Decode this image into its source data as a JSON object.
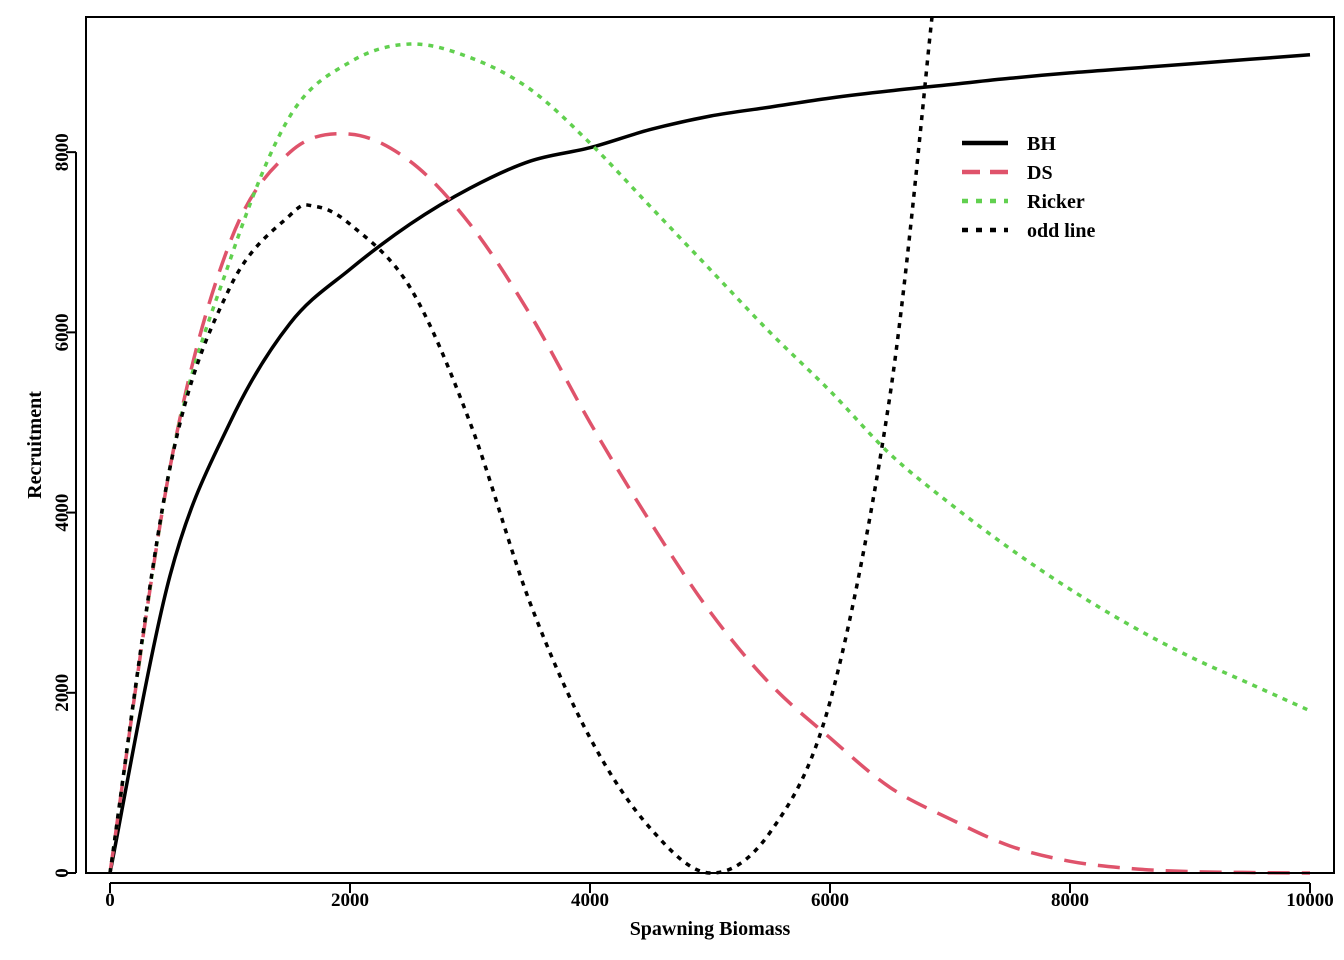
{
  "chart_data": {
    "type": "line",
    "title": "",
    "xlabel": "Spawning Biomass",
    "ylabel": "Recruitment",
    "xlim": [
      -200,
      10200
    ],
    "ylim": [
      0,
      9500
    ],
    "x_ticks": [
      "0",
      "2000",
      "4000",
      "6000",
      "8000",
      "10000"
    ],
    "y_ticks": [
      "0",
      "2000",
      "4000",
      "6000",
      "8000"
    ],
    "grid": false,
    "legend_position": "top-right",
    "series": [
      {
        "name": "BH",
        "color": "#000000",
        "style": "solid",
        "x": [
          0,
          500,
          1000,
          1500,
          2000,
          2500,
          3000,
          3500,
          4000,
          4500,
          5000,
          5500,
          6000,
          6500,
          7000,
          7500,
          8000,
          8500,
          9000,
          9500,
          10000
        ],
        "y": [
          0,
          3300,
          5000,
          6100,
          6700,
          7200,
          7600,
          7900,
          8050,
          8250,
          8400,
          8500,
          8600,
          8680,
          8750,
          8820,
          8880,
          8930,
          8980,
          9030,
          9080
        ]
      },
      {
        "name": "DS",
        "color": "#df536b",
        "style": "dashed",
        "x": [
          0,
          500,
          1000,
          1500,
          2000,
          2500,
          3000,
          3500,
          4000,
          4500,
          5000,
          5500,
          6000,
          6500,
          7000,
          7500,
          8000,
          8500,
          9000,
          9500,
          10000
        ],
        "y": [
          0,
          4500,
          7000,
          8000,
          8200,
          7900,
          7200,
          6200,
          5000,
          3900,
          2900,
          2100,
          1500,
          950,
          600,
          300,
          130,
          50,
          15,
          5,
          0
        ]
      },
      {
        "name": "Ricker",
        "color": "#61d04f",
        "style": "dotted",
        "x": [
          0,
          500,
          1000,
          1500,
          2000,
          2500,
          3000,
          3500,
          4000,
          4500,
          5000,
          5500,
          6000,
          6500,
          7000,
          7500,
          8000,
          8500,
          9000,
          9500,
          10000
        ],
        "y": [
          0,
          4500,
          6800,
          8400,
          9000,
          9200,
          9050,
          8700,
          8100,
          7400,
          6700,
          6000,
          5350,
          4650,
          4100,
          3600,
          3150,
          2750,
          2400,
          2100,
          1800
        ]
      },
      {
        "name": "odd line",
        "color": "#000000",
        "style": "dotted",
        "x": [
          0,
          500,
          1000,
          1500,
          1700,
          2000,
          2500,
          3000,
          3500,
          4000,
          4500,
          5000,
          5500,
          6000,
          6500,
          6850
        ],
        "y": [
          0,
          4500,
          6500,
          7300,
          7400,
          7200,
          6500,
          5000,
          3000,
          1500,
          500,
          0,
          450,
          1900,
          5300,
          9500
        ]
      }
    ]
  }
}
